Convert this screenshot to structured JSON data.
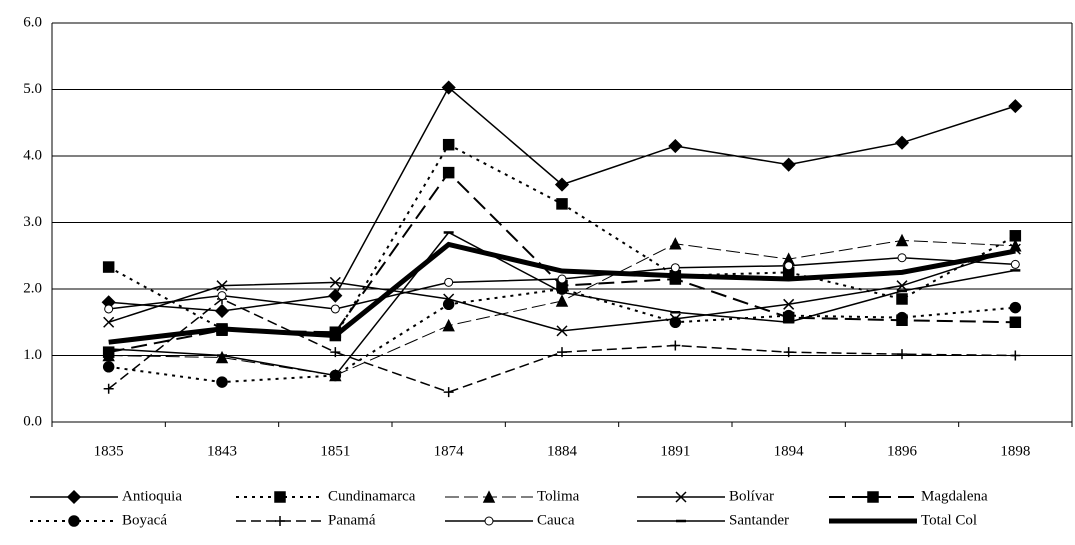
{
  "chart_data": {
    "type": "line",
    "categories": [
      "1835",
      "1843",
      "1851",
      "1874",
      "1884",
      "1891",
      "1894",
      "1896",
      "1898"
    ],
    "ylim": [
      0,
      6
    ],
    "yticks": [
      {
        "value": 0,
        "label": "0.0"
      },
      {
        "value": 1,
        "label": "1.0"
      },
      {
        "value": 2,
        "label": "2.0"
      },
      {
        "value": 3,
        "label": "3.0"
      },
      {
        "value": 4,
        "label": "4.0"
      },
      {
        "value": 5,
        "label": "5.0"
      },
      {
        "value": 6,
        "label": "6.0"
      }
    ],
    "grid": true,
    "legend": "bottom",
    "series": [
      {
        "name": "Antioquia",
        "color": "#000000",
        "dash": "solid",
        "marker": "diamond",
        "values": [
          1.8,
          1.67,
          1.9,
          5.03,
          3.57,
          4.15,
          3.87,
          4.2,
          4.75
        ]
      },
      {
        "name": "Cundinamarca",
        "color": "#000000",
        "dash": "dotted",
        "marker": "square",
        "values": [
          2.33,
          1.4,
          1.3,
          4.17,
          3.28,
          2.2,
          2.25,
          1.85,
          2.8
        ]
      },
      {
        "name": "Tolima",
        "color": "#000000",
        "dash": "dashed-thin",
        "marker": "triangle",
        "values": [
          1.0,
          0.97,
          0.7,
          1.45,
          1.82,
          2.68,
          2.45,
          2.73,
          2.65
        ]
      },
      {
        "name": "Bolívar",
        "color": "#000000",
        "dash": "solid",
        "marker": "x",
        "values": [
          1.5,
          2.05,
          2.1,
          1.85,
          1.37,
          1.55,
          1.77,
          2.05,
          2.6
        ]
      },
      {
        "name": "Magdalena",
        "color": "#000000",
        "dash": "long-dash",
        "marker": "square",
        "values": [
          1.05,
          1.38,
          1.35,
          3.75,
          2.05,
          2.15,
          1.57,
          1.53,
          1.5
        ]
      },
      {
        "name": "Boyacá",
        "color": "#000000",
        "dash": "dotted",
        "marker": "circle",
        "values": [
          0.83,
          0.6,
          0.7,
          1.77,
          2.0,
          1.5,
          1.6,
          1.57,
          1.72
        ]
      },
      {
        "name": "Panamá",
        "color": "#000000",
        "dash": "dashed",
        "marker": "plus",
        "values": [
          0.5,
          1.85,
          1.05,
          0.45,
          1.05,
          1.15,
          1.05,
          1.02,
          1.0
        ]
      },
      {
        "name": "Cauca",
        "color": "#000000",
        "dash": "solid",
        "marker": "open-circle",
        "values": [
          1.7,
          1.9,
          1.7,
          2.1,
          2.15,
          2.32,
          2.35,
          2.47,
          2.37
        ]
      },
      {
        "name": "Santander",
        "color": "#000000",
        "dash": "solid",
        "marker": "dash",
        "values": [
          1.1,
          1.0,
          0.7,
          2.85,
          1.95,
          1.65,
          1.5,
          1.97,
          2.28
        ]
      },
      {
        "name": "Total Col",
        "color": "#000000",
        "dash": "thick",
        "marker": "none",
        "values": [
          1.2,
          1.4,
          1.3,
          2.67,
          2.27,
          2.2,
          2.15,
          2.25,
          2.57
        ]
      }
    ]
  }
}
